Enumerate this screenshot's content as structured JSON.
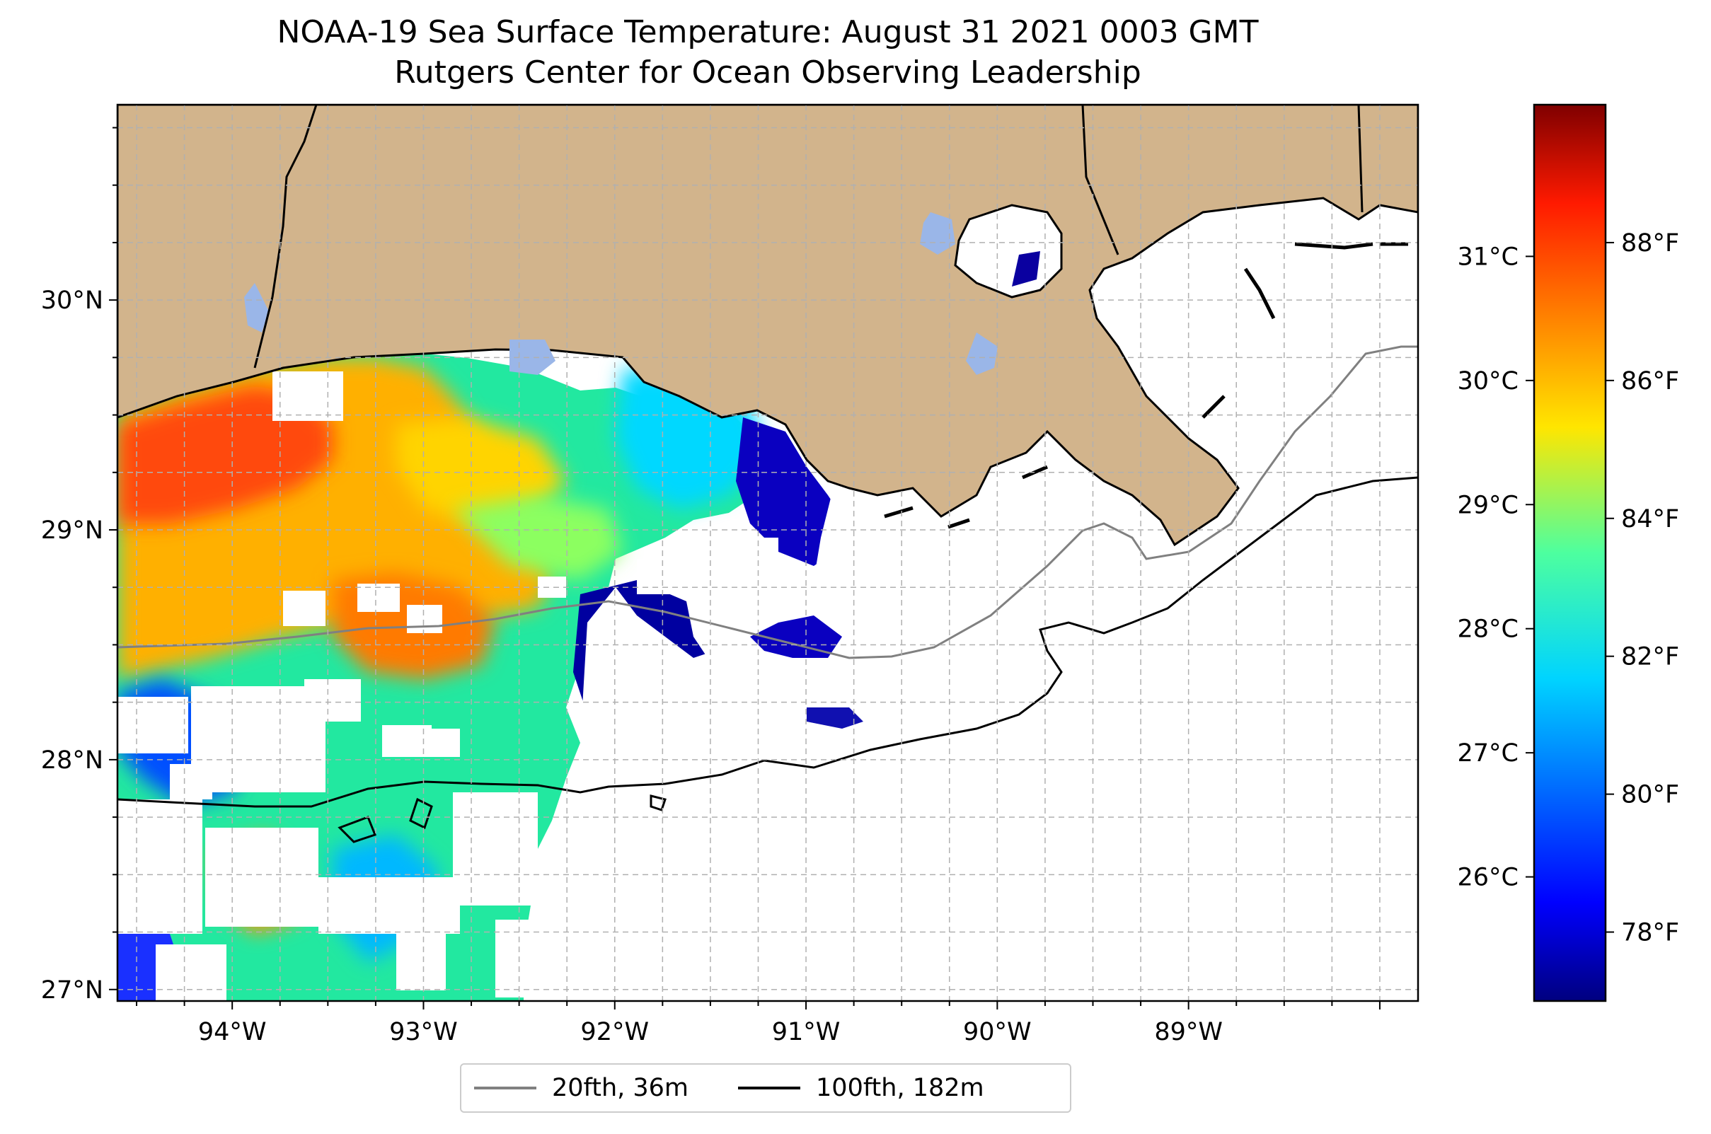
{
  "title": "NOAA-19 Sea Surface Temperature: August 31 2021 0003 GMT",
  "subtitle": "Rutgers Center for Ocean Observing Leadership",
  "colors": {
    "land": "#d2b48c",
    "lakes": "#9ab6e8",
    "frame": "#000000",
    "grid": "#b0b0b0",
    "depth_20fth": "#808080",
    "depth_100fth": "#000000"
  },
  "chart_data": {
    "type": "heatmap",
    "x_axis": {
      "ticks": [
        -94,
        -93,
        -92,
        -91,
        -90,
        -89
      ],
      "tick_labels": [
        "94°W",
        "93°W",
        "92°W",
        "91°W",
        "90°W",
        "89°W"
      ],
      "range": [
        -94.6,
        -87.8
      ]
    },
    "y_axis": {
      "ticks": [
        27,
        28,
        29,
        30
      ],
      "tick_labels": [
        "27°N",
        "28°N",
        "29°N",
        "30°N"
      ],
      "range": [
        26.95,
        30.85
      ]
    },
    "grid": true,
    "colorbar": {
      "colormap": "jet",
      "celsius_ticks": [
        26,
        27,
        28,
        29,
        30,
        31
      ],
      "celsius_labels": [
        "26°C",
        "27°C",
        "28°C",
        "29°C",
        "30°C",
        "31°C"
      ],
      "fahrenheit_ticks": [
        78,
        80,
        82,
        84,
        86,
        88
      ],
      "fahrenheit_labels": [
        "78°F",
        "80°F",
        "82°F",
        "84°F",
        "86°F",
        "88°F"
      ],
      "range_f": [
        77,
        90
      ]
    },
    "legend": {
      "placement": "bottom-center",
      "entries": [
        {
          "label": "20fth, 36m",
          "color": "#808080"
        },
        {
          "label": "100fth, 182m",
          "color": "#000000"
        }
      ]
    }
  }
}
